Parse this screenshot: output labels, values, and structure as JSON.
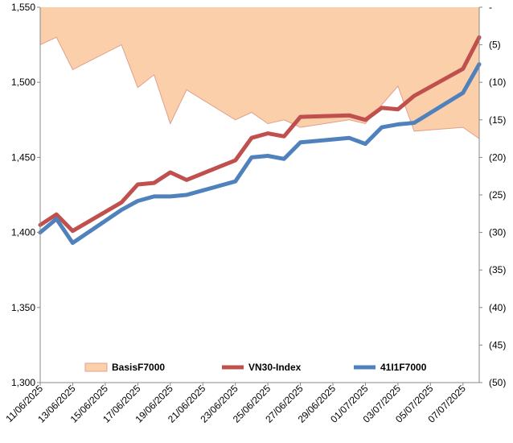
{
  "chart_data": {
    "type": "line",
    "x": [
      "11/06/2025",
      "12/06/2025",
      "13/06/2025",
      "16/06/2025",
      "17/06/2025",
      "18/06/2025",
      "19/06/2025",
      "20/06/2025",
      "23/06/2025",
      "24/06/2025",
      "25/06/2025",
      "26/06/2025",
      "27/06/2025",
      "30/06/2025",
      "01/07/2025",
      "02/07/2025",
      "03/07/2025",
      "04/07/2025",
      "07/07/2025",
      "08/07/2025"
    ],
    "x_tick_labels": [
      "11/06/2025",
      "13/06/2025",
      "15/06/2025",
      "17/06/2025",
      "19/06/2025",
      "21/06/2025",
      "23/06/2025",
      "25/06/2025",
      "27/06/2025",
      "29/06/2025",
      "01/07/2025",
      "03/07/2025",
      "05/07/2025",
      "07/07/2025"
    ],
    "x_range": [
      "11/06/2025",
      "08/07/2025"
    ],
    "series": [
      {
        "name": "VN30-Index",
        "axis": "left",
        "style": "line",
        "color": "#c0504d",
        "x": [
          "11/06/2025",
          "12/06/2025",
          "13/06/2025",
          "16/06/2025",
          "17/06/2025",
          "18/06/2025",
          "19/06/2025",
          "20/06/2025",
          "23/06/2025",
          "24/06/2025",
          "25/06/2025",
          "26/06/2025",
          "27/06/2025",
          "30/06/2025",
          "01/07/2025",
          "02/07/2025",
          "03/07/2025",
          "04/07/2025",
          "07/07/2025",
          "08/07/2025"
        ],
        "values": [
          1405,
          1412,
          1401,
          1420,
          1432,
          1433,
          1440,
          1435,
          1448,
          1463,
          1466,
          1464,
          1477,
          1478,
          1475,
          1483,
          1482,
          1491,
          1509,
          1530
        ]
      },
      {
        "name": "41I1F7000",
        "axis": "left",
        "style": "line",
        "color": "#4f81bd",
        "x": [
          "11/06/2025",
          "12/06/2025",
          "13/06/2025",
          "16/06/2025",
          "17/06/2025",
          "18/06/2025",
          "19/06/2025",
          "20/06/2025",
          "23/06/2025",
          "24/06/2025",
          "25/06/2025",
          "26/06/2025",
          "27/06/2025",
          "30/06/2025",
          "01/07/2025",
          "02/07/2025",
          "03/07/2025",
          "04/07/2025",
          "07/07/2025",
          "08/07/2025"
        ],
        "values": [
          1400,
          1409,
          1393,
          1415,
          1421,
          1424,
          1424,
          1425,
          1434,
          1450,
          1451,
          1449,
          1460,
          1463,
          1459,
          1470,
          1472,
          1473,
          1493,
          1512
        ]
      },
      {
        "name": "BasisF7000",
        "axis": "right",
        "style": "area",
        "color": "#fbcfa9",
        "edge_color": "#e0a090",
        "x": [
          "11/06/2025",
          "12/06/2025",
          "13/06/2025",
          "16/06/2025",
          "17/06/2025",
          "18/06/2025",
          "19/06/2025",
          "20/06/2025",
          "23/06/2025",
          "24/06/2025",
          "25/06/2025",
          "26/06/2025",
          "27/06/2025",
          "30/06/2025",
          "01/07/2025",
          "02/07/2025",
          "03/07/2025",
          "04/07/2025",
          "07/07/2025",
          "08/07/2025"
        ],
        "values": [
          -5,
          -4,
          -8.3,
          -5,
          -10.7,
          -9,
          -15.5,
          -11,
          -15,
          -14,
          -15.5,
          -15,
          -16,
          -15,
          -15.5,
          -13,
          -10.5,
          -16.5,
          -16,
          -17.5
        ]
      }
    ],
    "y_left": {
      "min": 1300,
      "max": 1550,
      "ticks": [
        1300,
        1350,
        1400,
        1450,
        1500,
        1550
      ],
      "tick_labels": [
        "1,300",
        "1,350",
        "1,400",
        "1,450",
        "1,500",
        "1,550"
      ]
    },
    "y_right": {
      "min": -50,
      "max": 0,
      "ticks": [
        0,
        -5,
        -10,
        -15,
        -20,
        -25,
        -30,
        -35,
        -40,
        -45,
        -50
      ],
      "tick_labels": [
        "-",
        "(5)",
        "(10)",
        "(15)",
        "(20)",
        "(25)",
        "(30)",
        "(35)",
        "(40)",
        "(45)",
        "(50)"
      ]
    },
    "legend": {
      "position": "bottom-inside",
      "items": [
        {
          "label": "BasisF7000",
          "kind": "area"
        },
        {
          "label": "VN30-Index",
          "kind": "line"
        },
        {
          "label": "41I1F7000",
          "kind": "line"
        }
      ]
    },
    "grid": false
  }
}
